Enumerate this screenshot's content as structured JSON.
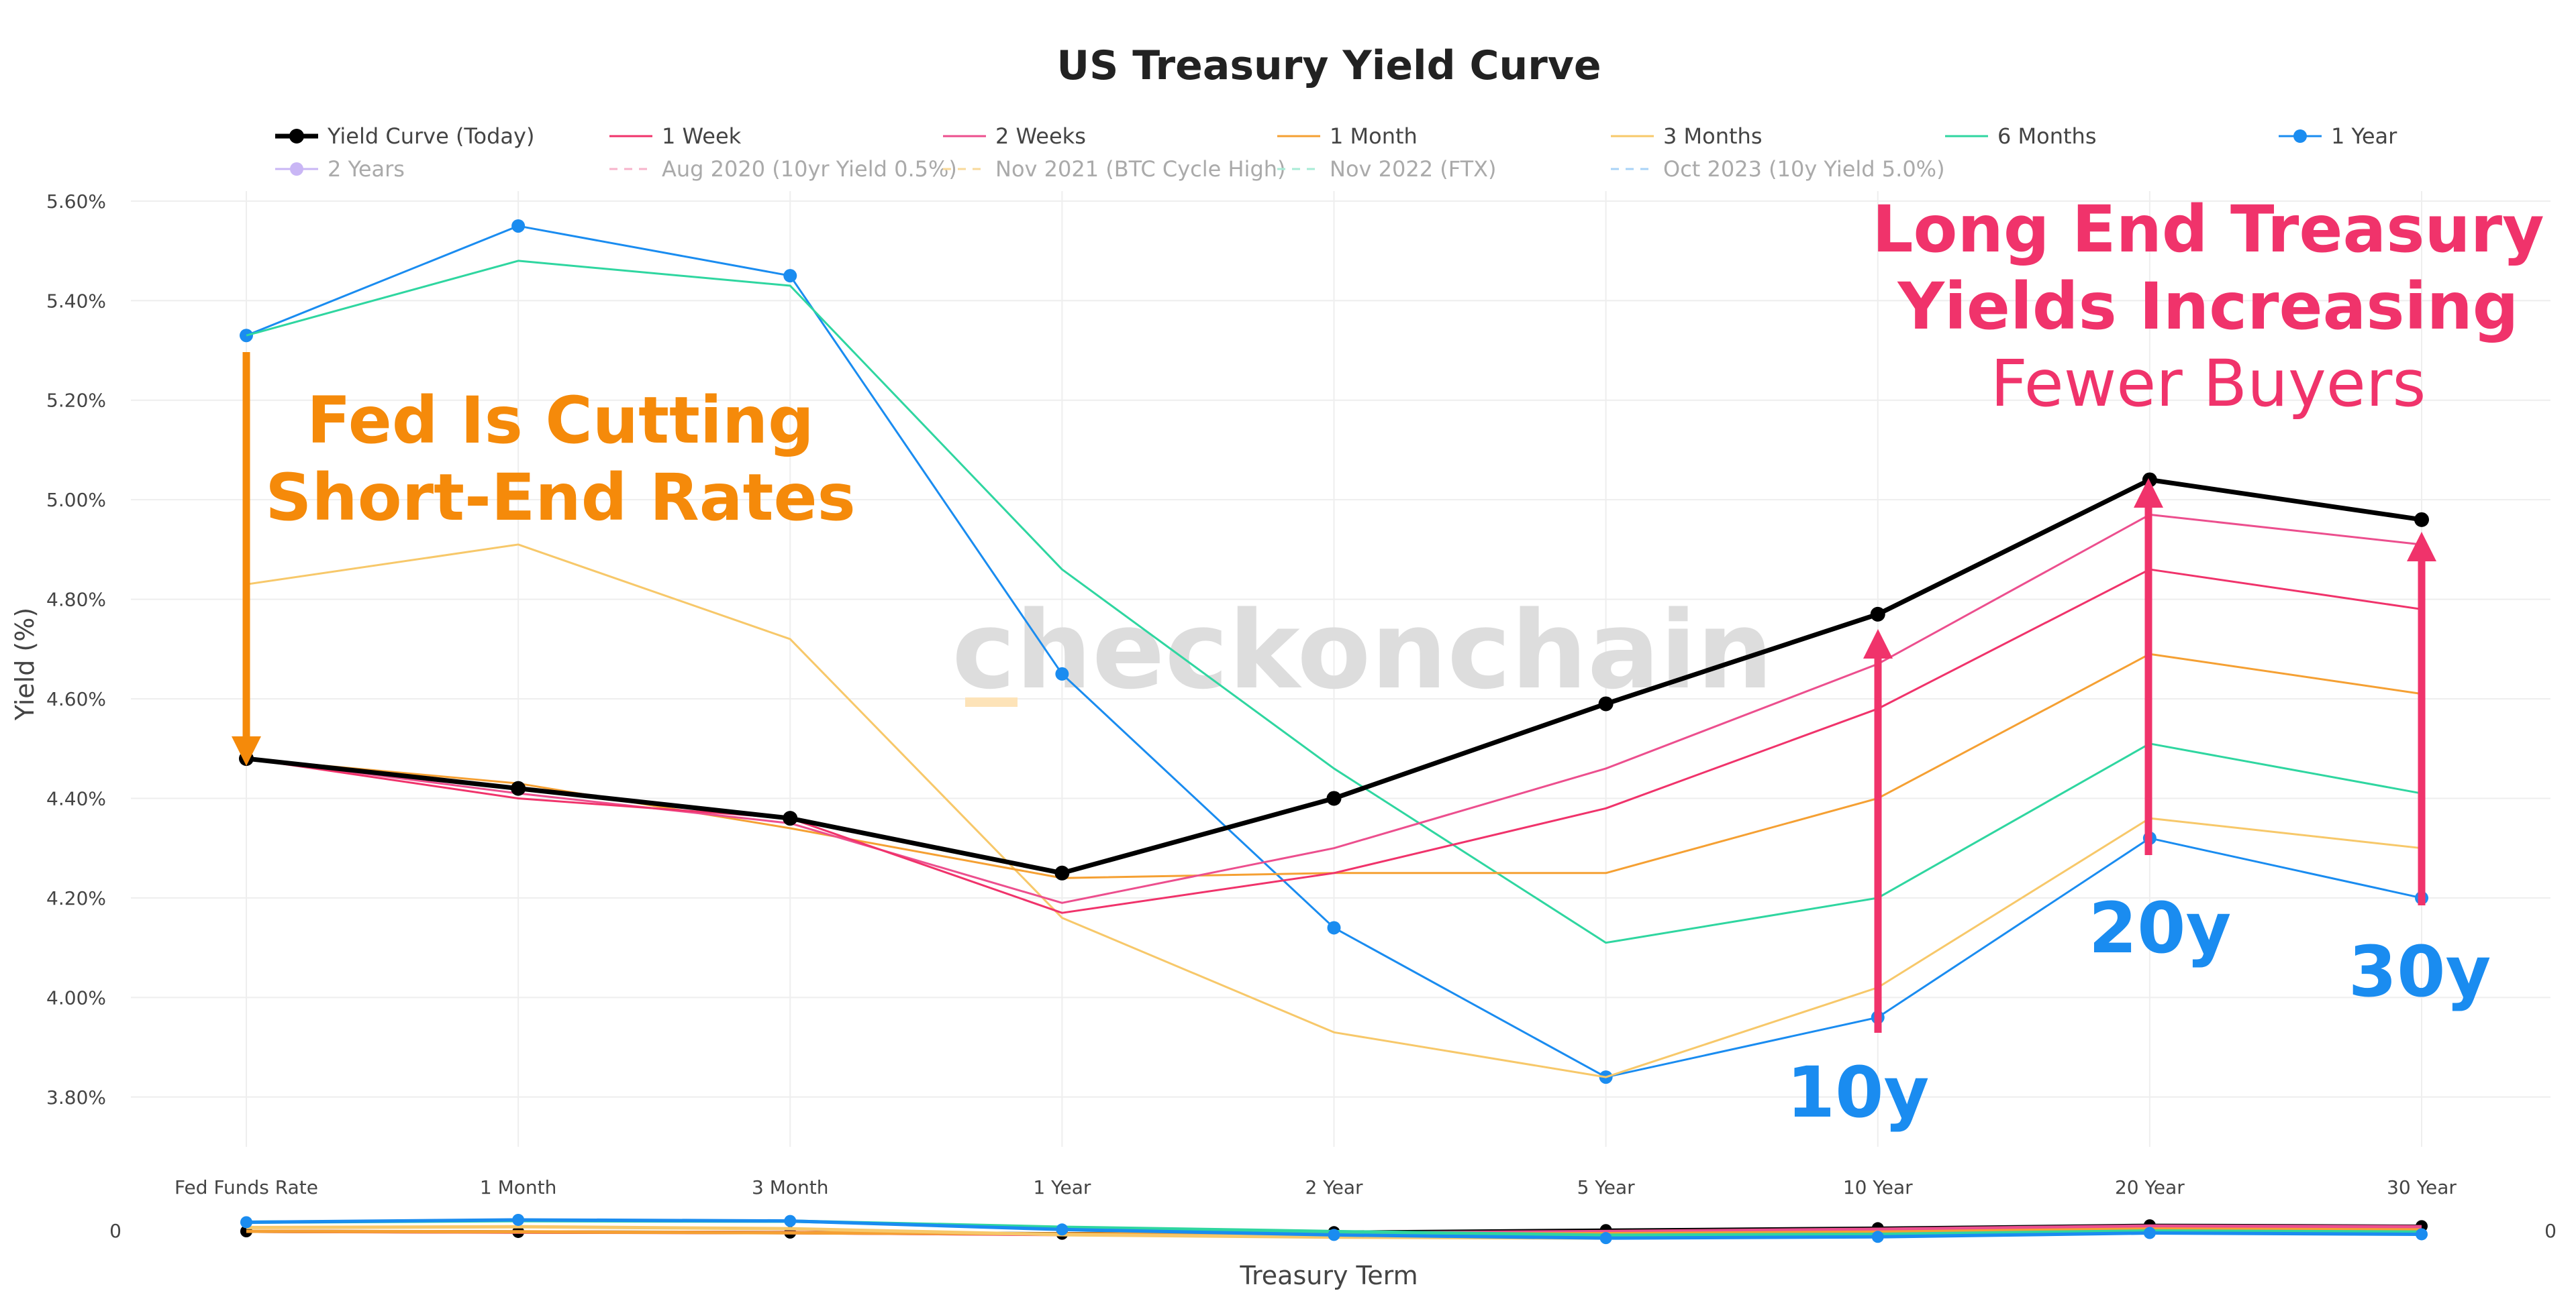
{
  "chart_data": {
    "type": "line",
    "title": "US Treasury Yield Curve",
    "xlabel": "Treasury Term",
    "ylabel": "Yield (%)",
    "categories": [
      "Fed Funds Rate",
      "1 Month",
      "3 Month",
      "1 Year",
      "2 Year",
      "5 Year",
      "10 Year",
      "20 Year",
      "30 Year"
    ],
    "ylim": [
      3.7,
      5.62
    ],
    "yticks": [
      "3.80%",
      "4.00%",
      "4.20%",
      "4.40%",
      "4.60%",
      "4.80%",
      "5.00%",
      "5.20%",
      "5.40%",
      "5.60%"
    ],
    "ytick_values": [
      3.8,
      4.0,
      4.2,
      4.4,
      4.6,
      4.8,
      5.0,
      5.2,
      5.4,
      5.6
    ],
    "grid": true,
    "legend_position": "top",
    "series": [
      {
        "name": "Yield Curve (Today)",
        "color": "#000000",
        "markers": true,
        "bold": true,
        "values": [
          4.48,
          4.42,
          4.36,
          4.25,
          4.4,
          4.59,
          4.77,
          5.04,
          4.96
        ]
      },
      {
        "name": "1 Week",
        "color": "#f0336b",
        "markers": false,
        "values": [
          4.48,
          4.4,
          4.36,
          4.17,
          4.25,
          4.38,
          4.58,
          4.86,
          4.78
        ]
      },
      {
        "name": "2 Weeks",
        "color": "#ec4f8e",
        "markers": false,
        "values": [
          4.48,
          4.41,
          4.35,
          4.19,
          4.3,
          4.46,
          4.67,
          4.97,
          4.91
        ]
      },
      {
        "name": "1 Month",
        "color": "#f5a033",
        "markers": false,
        "values": [
          4.48,
          4.43,
          4.34,
          4.24,
          4.25,
          4.25,
          4.4,
          4.69,
          4.61
        ]
      },
      {
        "name": "3 Months",
        "color": "#f7c86a",
        "markers": false,
        "values": [
          4.83,
          4.91,
          4.72,
          4.16,
          3.93,
          3.84,
          4.02,
          4.36,
          4.3
        ]
      },
      {
        "name": "6 Months",
        "color": "#2fd6a0",
        "markers": false,
        "values": [
          5.33,
          5.48,
          5.43,
          4.86,
          4.46,
          4.11,
          4.2,
          4.51,
          4.41
        ]
      },
      {
        "name": "1 Year",
        "color": "#1a8cf0",
        "markers": true,
        "values": [
          5.33,
          5.55,
          5.45,
          4.65,
          4.14,
          3.84,
          3.96,
          4.32,
          4.2
        ]
      }
    ],
    "hidden_series": [
      "2 Years",
      "Aug 2020 (10yr Yield 0.5%)",
      "Nov 2021 (BTC Cycle High)",
      "Nov 2022 (FTX)",
      "Oct 2023 (10y Yield 5.0%)"
    ],
    "mini_axis_zero": "0",
    "annotations": {
      "left_line1": "Fed Is Cutting",
      "left_line2": "Short-End Rates",
      "right_line1": "Long End Treasury",
      "right_line2": "Yields Increasing",
      "right_line3": "Fewer Buyers",
      "label_10y": "10y",
      "label_20y": "20y",
      "label_30y": "30y",
      "watermark": "checkonchain"
    }
  }
}
